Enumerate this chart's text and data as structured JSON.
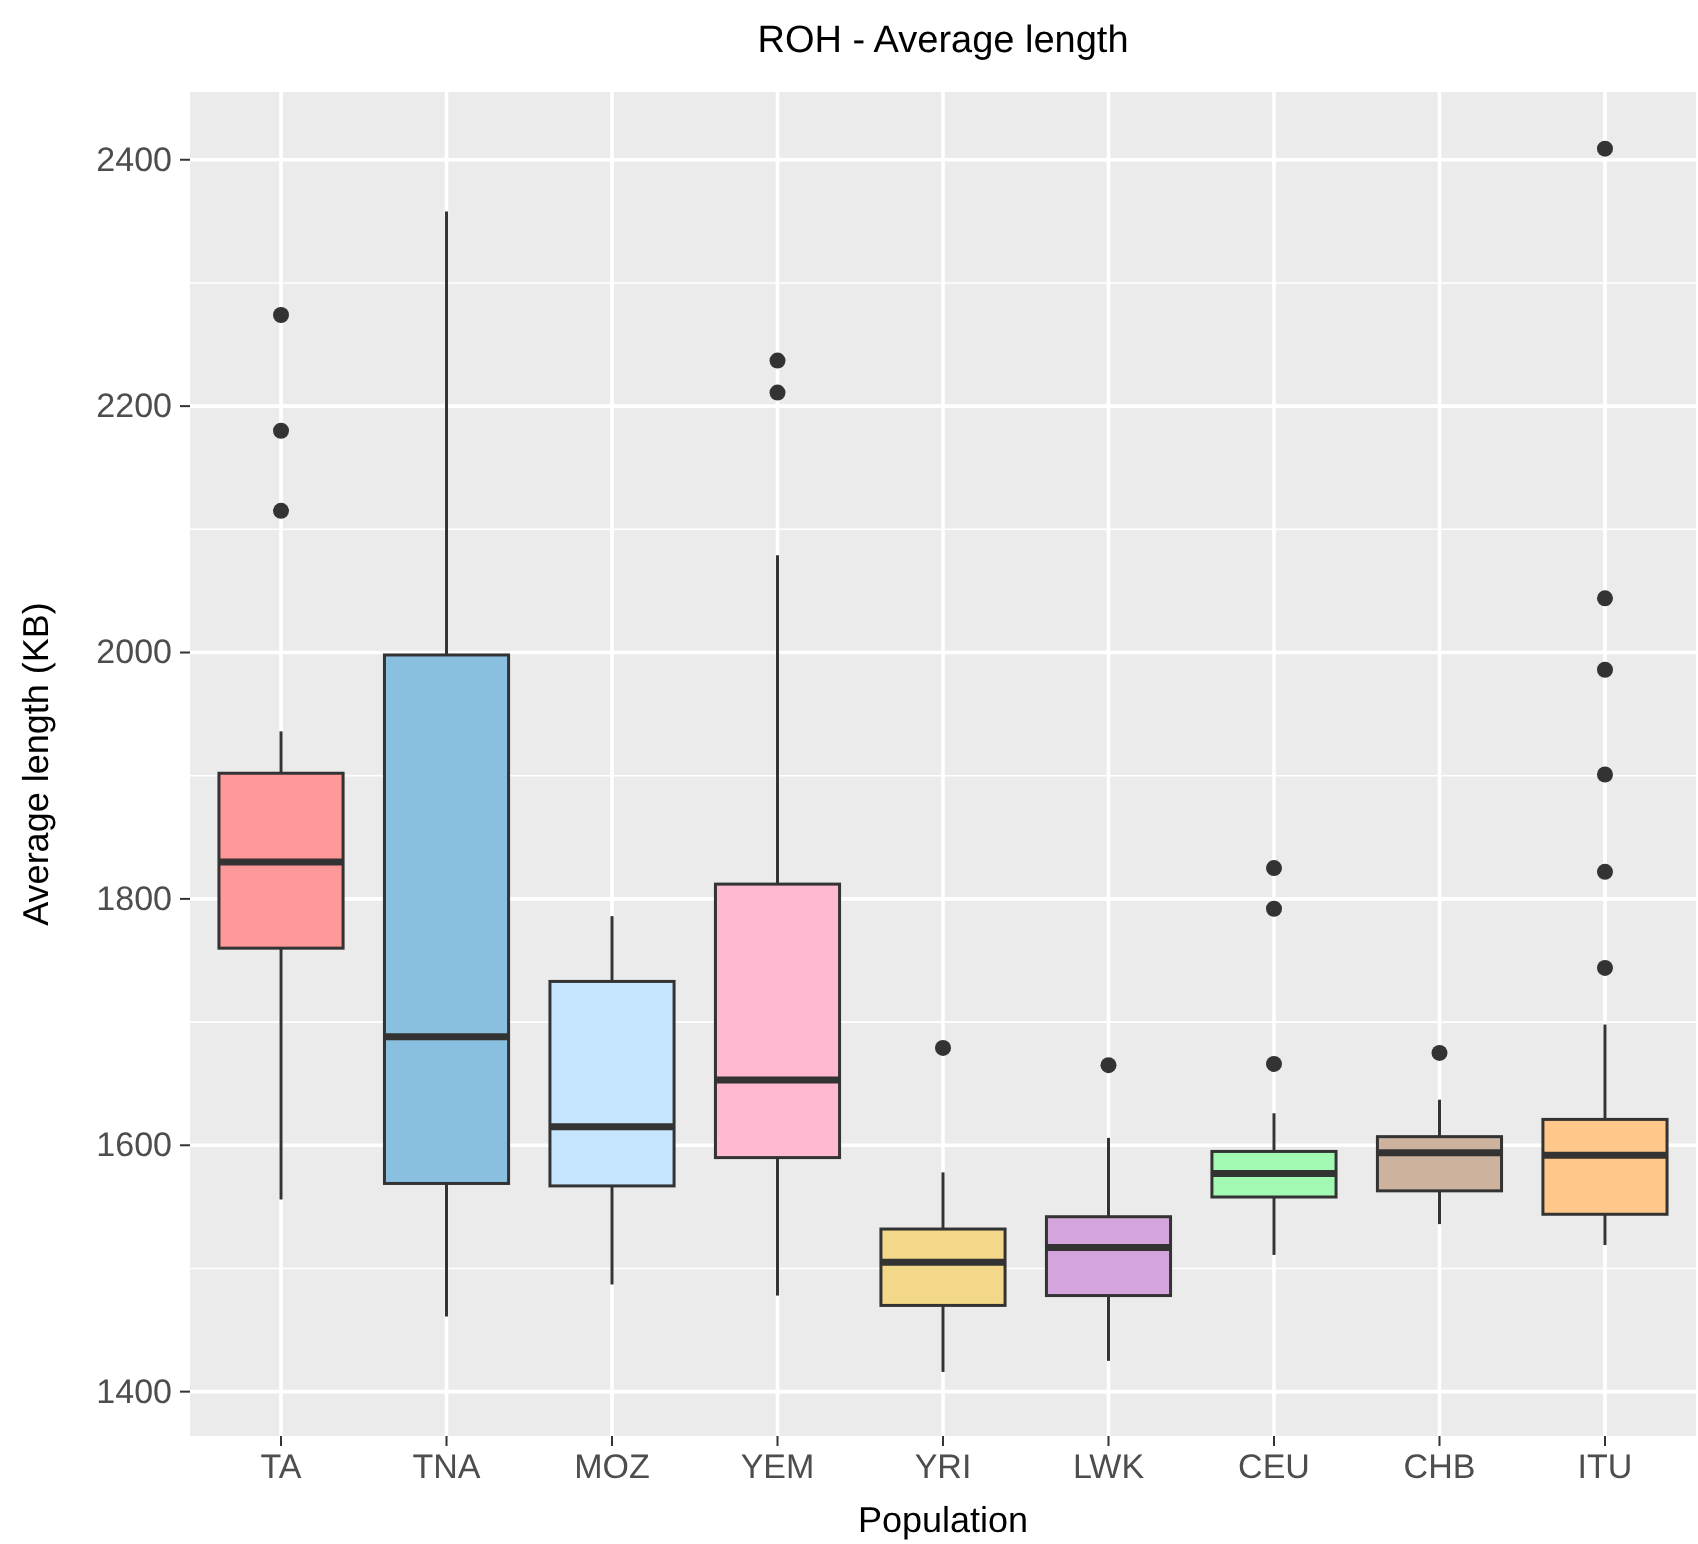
{
  "chart_data": {
    "type": "box",
    "title": "ROH - Average length",
    "xlabel": "Population",
    "ylabel": "Average length (KB)",
    "categories": [
      "TA",
      "TNA",
      "MOZ",
      "YEM",
      "YRI",
      "LWK",
      "CEU",
      "CHB",
      "ITU"
    ],
    "colors": [
      "#ff9999",
      "#89bfdf",
      "#c6e6ff",
      "#ffb9d0",
      "#f2d888",
      "#d4a5dc",
      "#a2f9b3",
      "#cdb29e",
      "#ffc88a"
    ],
    "boxes": [
      {
        "low": 1556,
        "q1": 1760,
        "median": 1830,
        "q3": 1902,
        "high": 1936,
        "outliers": [
          2274,
          2180,
          2115
        ]
      },
      {
        "low": 1461,
        "q1": 1569,
        "median": 1688,
        "q3": 1998,
        "high": 2358
      },
      {
        "low": 1487,
        "q1": 1567,
        "median": 1615,
        "q3": 1733,
        "high": 1786
      },
      {
        "low": 1478,
        "q1": 1590,
        "median": 1653,
        "q3": 1812,
        "high": 2079,
        "outliers": [
          2237,
          2211
        ]
      },
      {
        "low": 1416,
        "q1": 1470,
        "median": 1505,
        "q3": 1532,
        "high": 1578,
        "outliers": [
          1679
        ]
      },
      {
        "low": 1425,
        "q1": 1478,
        "median": 1517,
        "q3": 1542,
        "high": 1606,
        "outliers": [
          1665
        ]
      },
      {
        "low": 1511,
        "q1": 1558,
        "median": 1577,
        "q3": 1595,
        "high": 1626,
        "outliers": [
          1825,
          1792,
          1666
        ]
      },
      {
        "low": 1536,
        "q1": 1563,
        "median": 1594,
        "q3": 1607,
        "high": 1637,
        "outliers": [
          1675
        ]
      },
      {
        "low": 1519,
        "q1": 1544,
        "median": 1592,
        "q3": 1621,
        "high": 1698,
        "outliers": [
          2409,
          2044,
          1986,
          1901,
          1822,
          1744
        ]
      }
    ],
    "ylim": [
      1364,
      2455
    ],
    "yticks": [
      1400,
      1600,
      1800,
      2000,
      2200,
      2400
    ],
    "grid": true
  }
}
